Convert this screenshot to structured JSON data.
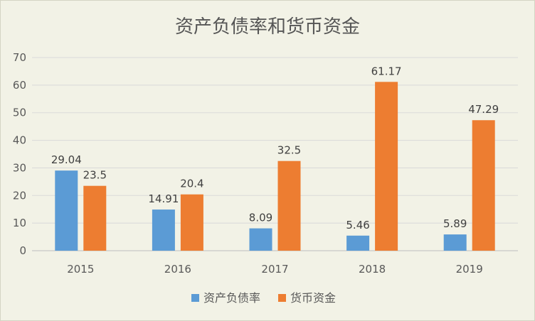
{
  "chart_data": {
    "type": "bar",
    "title": "资产负债率和货币资金",
    "categories": [
      "2015",
      "2016",
      "2017",
      "2018",
      "2019"
    ],
    "series": [
      {
        "name": "资产负债率",
        "color": "#5b9bd5",
        "values": [
          29.04,
          14.91,
          8.09,
          5.46,
          5.89
        ],
        "labels": [
          "29.04",
          "14.91",
          "8.09",
          "5.46",
          "5.89"
        ]
      },
      {
        "name": "货币资金",
        "color": "#ed7d31",
        "values": [
          23.5,
          20.4,
          32.5,
          61.17,
          47.29
        ],
        "labels": [
          "23.5",
          "20.4",
          "32.5",
          "61.17",
          "47.29"
        ]
      }
    ],
    "ylim": [
      0,
      70
    ],
    "yticks": [
      0,
      10,
      20,
      30,
      40,
      50,
      60,
      70
    ],
    "xlabel": "",
    "ylabel": "",
    "grid": true,
    "legend": "bottom"
  }
}
